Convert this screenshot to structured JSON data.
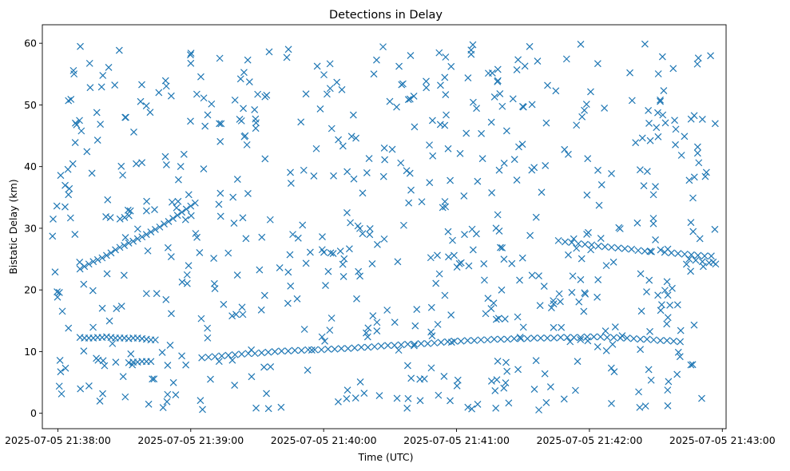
{
  "chart_data": {
    "type": "scatter",
    "title": "Detections in Delay",
    "xlabel": "Time (UTC)",
    "ylabel": "Bistatic Delay (km)",
    "x_tick_labels": [
      "2025-07-05 21:38:00",
      "2025-07-05 21:39:00",
      "2025-07-05 21:40:00",
      "2025-07-05 21:41:00",
      "2025-07-05 21:42:00",
      "2025-07-05 21:43:00"
    ],
    "x_tick_values_s": [
      60,
      120,
      180,
      240,
      300,
      360
    ],
    "x_axis_note": "x values in seconds after 2025-07-05 21:37:00 UTC",
    "xlim": [
      53.0,
      361.7
    ],
    "y_ticks": [
      0,
      10,
      20,
      30,
      40,
      50,
      60
    ],
    "ylim": [
      -2.5,
      63
    ],
    "marker": "x",
    "color": "#1f77b4",
    "tracks": [
      {
        "name": "track-1",
        "x": [
          70,
          72,
          74,
          76,
          78,
          80,
          82,
          84,
          86,
          88,
          90,
          92,
          94,
          96,
          98,
          100,
          102,
          104,
          106,
          108,
          110,
          112,
          114,
          116,
          118,
          120,
          122
        ],
        "y": [
          23.4,
          23.8,
          24.2,
          24.6,
          24.9,
          25.2,
          25.6,
          26.0,
          26.5,
          26.9,
          27.2,
          27.6,
          27.9,
          28.3,
          28.6,
          29.0,
          29.4,
          29.8,
          30.2,
          30.7,
          31.1,
          31.6,
          32.1,
          32.6,
          33.1,
          33.6,
          34.1
        ]
      },
      {
        "name": "track-2",
        "x": [
          70,
          72,
          74,
          76,
          78,
          80,
          82,
          84,
          86,
          88,
          90,
          92,
          94,
          96,
          98,
          100,
          102,
          104
        ],
        "y": [
          12.3,
          12.2,
          12.2,
          12.2,
          12.3,
          12.3,
          12.4,
          12.3,
          12.2,
          12.2,
          12.2,
          12.1,
          12.2,
          12.2,
          12.1,
          12.0,
          11.9,
          11.9
        ]
      },
      {
        "name": "track-3",
        "x": [
          92,
          94,
          96,
          98,
          100,
          102
        ],
        "y": [
          8.2,
          8.3,
          8.3,
          8.4,
          8.4,
          8.4
        ]
      },
      {
        "name": "track-4",
        "x": [
          125,
          128,
          131,
          134,
          137,
          140,
          143,
          146,
          149,
          152,
          155,
          158,
          161,
          164,
          167,
          170,
          173,
          176,
          179,
          182,
          185,
          188,
          191,
          194,
          197,
          200,
          203,
          206,
          209,
          212,
          215,
          218,
          221,
          224,
          227,
          230,
          233,
          236,
          239,
          242,
          245,
          248,
          251,
          254,
          257,
          260,
          263,
          266,
          269,
          272,
          275,
          278,
          281,
          284,
          287,
          290,
          293,
          296,
          299,
          302,
          305,
          308,
          311,
          314,
          317,
          320,
          323,
          326,
          329,
          332,
          335,
          338,
          341
        ],
        "y": [
          9.0,
          9.1,
          9.2,
          9.3,
          9.4,
          9.5,
          9.6,
          9.7,
          9.7,
          9.8,
          9.9,
          10.0,
          10.1,
          10.1,
          10.2,
          10.2,
          10.3,
          10.3,
          10.3,
          10.4,
          10.4,
          10.5,
          10.5,
          10.6,
          10.7,
          10.7,
          10.8,
          10.9,
          11.0,
          11.0,
          11.1,
          11.2,
          11.2,
          11.3,
          11.3,
          11.4,
          11.5,
          11.6,
          11.7,
          11.7,
          11.8,
          11.8,
          11.9,
          11.9,
          12.0,
          12.0,
          12.0,
          12.1,
          12.1,
          12.1,
          12.2,
          12.2,
          12.2,
          12.2,
          12.3,
          12.3,
          12.3,
          12.3,
          12.4,
          12.4,
          12.4,
          12.3,
          12.3,
          12.2,
          12.2,
          12.1,
          12.0,
          12.0,
          11.9,
          11.8,
          11.8,
          11.7,
          11.6
        ]
      },
      {
        "name": "track-5",
        "x": [
          286,
          289,
          292,
          295,
          298,
          301,
          304,
          307,
          310,
          313,
          316,
          319,
          322,
          325,
          328
        ],
        "y": [
          28.0,
          27.8,
          27.7,
          27.5,
          27.4,
          27.3,
          27.1,
          27.0,
          26.9,
          26.8,
          26.7,
          26.6,
          26.4,
          26.3,
          26.2
        ]
      },
      {
        "name": "track-6",
        "x": [
          334,
          337,
          340,
          343,
          346,
          349,
          352,
          355
        ],
        "y": [
          26.1,
          26.0,
          25.9,
          25.8,
          25.7,
          25.6,
          25.5,
          25.5
        ]
      },
      {
        "name": "track-7",
        "x": [
          345,
          348,
          351,
          354,
          357
        ],
        "y": [
          25.0,
          24.8,
          24.6,
          24.4,
          24.2
        ]
      }
    ],
    "noise_points": {
      "count": 630,
      "x_range": [
        57,
        358
      ],
      "y_range": [
        0.5,
        60
      ]
    }
  }
}
